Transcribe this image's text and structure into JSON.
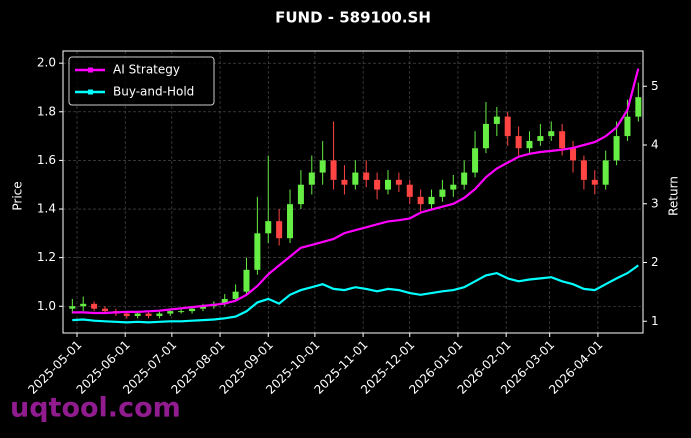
{
  "chart_data": {
    "type": "candlestick",
    "title": "FUND - 589100.SH",
    "y_label": "Price",
    "y2_label": "Return",
    "watermark": "uqtool.com",
    "x": [
      "2025-04-28",
      "2025-05-05",
      "2025-05-12",
      "2025-05-19",
      "2025-05-26",
      "2025-06-02",
      "2025-06-09",
      "2025-06-16",
      "2025-06-23",
      "2025-06-30",
      "2025-07-07",
      "2025-07-14",
      "2025-07-21",
      "2025-07-28",
      "2025-08-04",
      "2025-08-11",
      "2025-08-18",
      "2025-08-25",
      "2025-09-01",
      "2025-09-08",
      "2025-09-15",
      "2025-09-22",
      "2025-09-29",
      "2025-10-06",
      "2025-10-13",
      "2025-10-20",
      "2025-10-27",
      "2025-11-03",
      "2025-11-10",
      "2025-11-17",
      "2025-11-24",
      "2025-12-01",
      "2025-12-08",
      "2025-12-15",
      "2025-12-22",
      "2025-12-29",
      "2026-01-05",
      "2026-01-12",
      "2026-01-19",
      "2026-01-26",
      "2026-02-02",
      "2026-02-09",
      "2026-02-16",
      "2026-02-23",
      "2026-03-02",
      "2026-03-09",
      "2026-03-16",
      "2026-03-23",
      "2026-03-30",
      "2026-04-06",
      "2026-04-13",
      "2026-04-20",
      "2026-04-27"
    ],
    "open": [
      0.99,
      1.0,
      1.01,
      0.99,
      0.98,
      0.97,
      0.96,
      0.97,
      0.96,
      0.97,
      0.98,
      0.98,
      0.99,
      1.0,
      1.01,
      1.03,
      1.06,
      1.15,
      1.3,
      1.35,
      1.28,
      1.42,
      1.5,
      1.55,
      1.6,
      1.52,
      1.5,
      1.55,
      1.52,
      1.48,
      1.52,
      1.5,
      1.45,
      1.42,
      1.45,
      1.48,
      1.5,
      1.55,
      1.65,
      1.75,
      1.78,
      1.7,
      1.65,
      1.68,
      1.7,
      1.72,
      1.65,
      1.6,
      1.52,
      1.5,
      1.6,
      1.7,
      1.78
    ],
    "high": [
      1.03,
      1.04,
      1.02,
      1.0,
      0.99,
      0.98,
      0.98,
      0.98,
      0.98,
      0.99,
      0.99,
      1.0,
      1.01,
      1.02,
      1.05,
      1.09,
      1.2,
      1.45,
      1.62,
      1.4,
      1.48,
      1.56,
      1.62,
      1.68,
      1.76,
      1.58,
      1.6,
      1.6,
      1.55,
      1.56,
      1.55,
      1.52,
      1.48,
      1.48,
      1.52,
      1.54,
      1.6,
      1.72,
      1.84,
      1.82,
      1.8,
      1.74,
      1.72,
      1.75,
      1.76,
      1.75,
      1.68,
      1.62,
      1.56,
      1.64,
      1.76,
      1.85,
      1.92
    ],
    "low": [
      0.97,
      0.98,
      0.98,
      0.97,
      0.96,
      0.95,
      0.95,
      0.95,
      0.95,
      0.96,
      0.97,
      0.97,
      0.98,
      0.99,
      1.0,
      1.02,
      1.05,
      1.13,
      1.26,
      1.25,
      1.26,
      1.4,
      1.46,
      1.5,
      1.48,
      1.46,
      1.48,
      1.49,
      1.44,
      1.46,
      1.47,
      1.42,
      1.39,
      1.4,
      1.43,
      1.45,
      1.48,
      1.53,
      1.63,
      1.7,
      1.66,
      1.62,
      1.63,
      1.66,
      1.68,
      1.62,
      1.55,
      1.48,
      1.46,
      1.48,
      1.58,
      1.68,
      1.76
    ],
    "close": [
      1.0,
      1.01,
      0.99,
      0.98,
      0.97,
      0.96,
      0.97,
      0.96,
      0.97,
      0.98,
      0.98,
      0.99,
      1.0,
      1.01,
      1.03,
      1.06,
      1.15,
      1.3,
      1.35,
      1.28,
      1.42,
      1.5,
      1.55,
      1.6,
      1.52,
      1.5,
      1.55,
      1.52,
      1.48,
      1.52,
      1.5,
      1.45,
      1.42,
      1.45,
      1.48,
      1.5,
      1.55,
      1.65,
      1.75,
      1.78,
      1.7,
      1.65,
      1.68,
      1.7,
      1.72,
      1.65,
      1.6,
      1.52,
      1.5,
      1.6,
      1.7,
      1.78,
      1.86
    ],
    "up_color": "#66ee44",
    "down_color": "#ff4444",
    "series": [
      {
        "name": "AI Strategy",
        "color": "#ff00ff",
        "axis": "y2",
        "values": [
          1.15,
          1.15,
          1.14,
          1.14,
          1.15,
          1.16,
          1.16,
          1.17,
          1.18,
          1.2,
          1.22,
          1.24,
          1.26,
          1.28,
          1.3,
          1.35,
          1.45,
          1.6,
          1.8,
          1.95,
          2.1,
          2.25,
          2.3,
          2.35,
          2.4,
          2.5,
          2.55,
          2.6,
          2.65,
          2.7,
          2.72,
          2.75,
          2.85,
          2.9,
          2.95,
          3.0,
          3.1,
          3.25,
          3.45,
          3.6,
          3.7,
          3.8,
          3.85,
          3.88,
          3.9,
          3.92,
          3.95,
          4.0,
          4.05,
          4.15,
          4.3,
          4.6,
          5.3
        ]
      },
      {
        "name": "Buy-and-Hold",
        "color": "#00ffff",
        "axis": "y2",
        "values": [
          1.02,
          1.03,
          1.01,
          1.0,
          0.99,
          0.98,
          0.99,
          0.98,
          0.99,
          1.0,
          1.0,
          1.01,
          1.02,
          1.03,
          1.05,
          1.08,
          1.17,
          1.32,
          1.38,
          1.3,
          1.45,
          1.53,
          1.58,
          1.63,
          1.55,
          1.53,
          1.58,
          1.55,
          1.51,
          1.55,
          1.53,
          1.48,
          1.45,
          1.48,
          1.51,
          1.53,
          1.58,
          1.68,
          1.78,
          1.82,
          1.73,
          1.68,
          1.71,
          1.73,
          1.75,
          1.68,
          1.63,
          1.55,
          1.53,
          1.63,
          1.73,
          1.82,
          1.95
        ]
      }
    ],
    "xlim": [
      "2025-04-22",
      "2026-04-30"
    ],
    "xticks": [
      "2025-05-01",
      "2025-06-01",
      "2025-07-01",
      "2025-08-01",
      "2025-09-01",
      "2025-10-01",
      "2025-11-01",
      "2025-12-01",
      "2026-01-01",
      "2026-02-01",
      "2026-03-01",
      "2026-04-01"
    ],
    "ylim": [
      0.89,
      2.05
    ],
    "yticks": [
      {
        "value": 1,
        "label": "1.0"
      },
      {
        "value": 1.2,
        "label": "1.2"
      },
      {
        "value": 1.4,
        "label": "1.4"
      },
      {
        "value": 1.6,
        "label": "1.6"
      },
      {
        "value": 1.8,
        "label": "1.8"
      },
      {
        "value": 2,
        "label": "2.0"
      }
    ],
    "y2lim": [
      0.8,
      5.6
    ],
    "y2ticks": [
      1,
      2,
      3,
      4,
      5
    ],
    "grid": true,
    "legend": "upper-left"
  }
}
